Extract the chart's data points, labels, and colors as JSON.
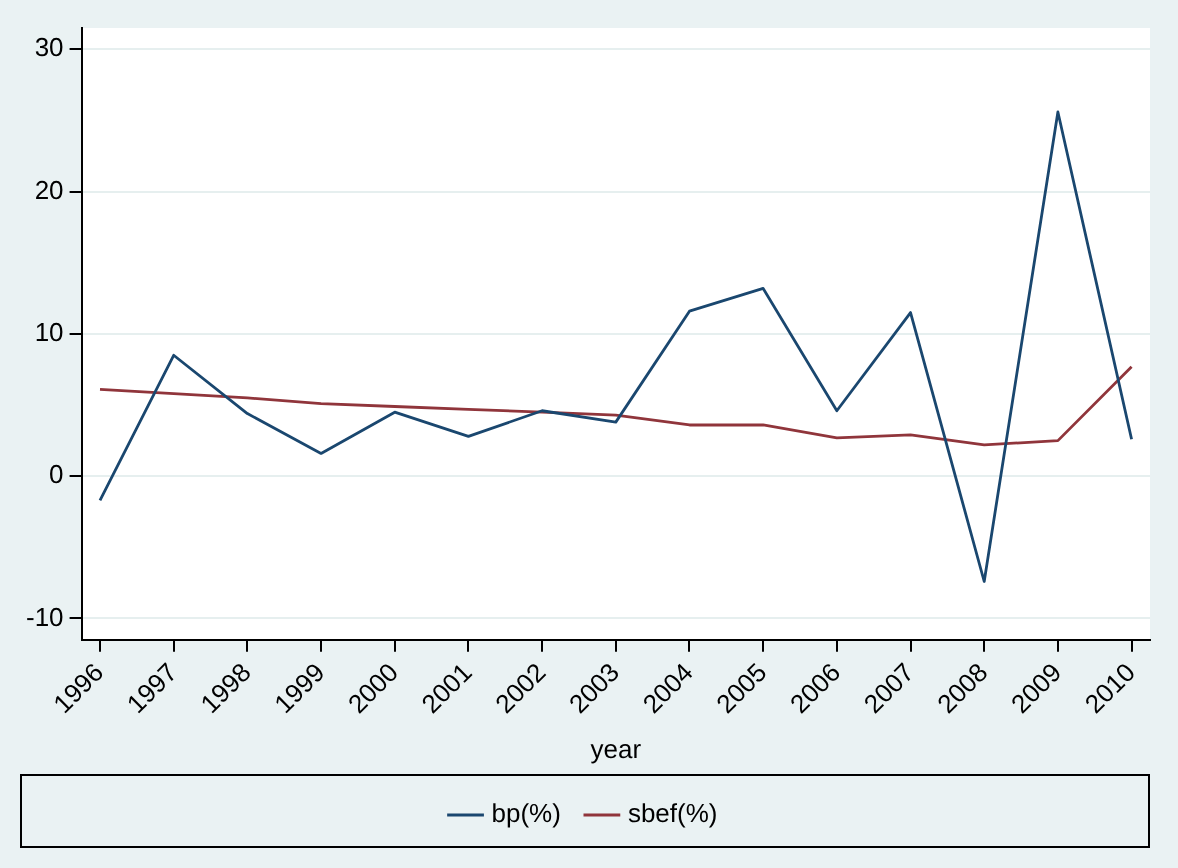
{
  "chart_data": {
    "type": "line",
    "xlabel": "year",
    "x": [
      1996,
      1997,
      1998,
      1999,
      2000,
      2001,
      2002,
      2003,
      2004,
      2005,
      2006,
      2007,
      2008,
      2009,
      2010
    ],
    "series": [
      {
        "name": "bp(%)",
        "color": "#1a476f",
        "values": [
          -1.7,
          8.5,
          4.4,
          1.6,
          4.5,
          2.8,
          4.6,
          3.8,
          11.6,
          13.2,
          4.6,
          11.5,
          -7.4,
          25.6,
          2.6
        ]
      },
      {
        "name": "sbef(%)",
        "color": "#90353b",
        "values": [
          6.1,
          5.8,
          5.5,
          5.1,
          4.9,
          4.7,
          4.5,
          4.3,
          3.6,
          3.6,
          2.7,
          2.9,
          2.2,
          2.5,
          7.7
        ]
      }
    ],
    "xlim": [
      1995.75,
      2010.25
    ],
    "xticks": [
      1996,
      1997,
      1998,
      1999,
      2000,
      2001,
      2002,
      2003,
      2004,
      2005,
      2006,
      2007,
      2008,
      2009,
      2010
    ],
    "ylim": [
      -11.5,
      31.5
    ],
    "yticks": [
      -10,
      0,
      10,
      20,
      30
    ],
    "grid": "y",
    "legend": "bottom",
    "marker": "none",
    "line_style": "solid"
  }
}
